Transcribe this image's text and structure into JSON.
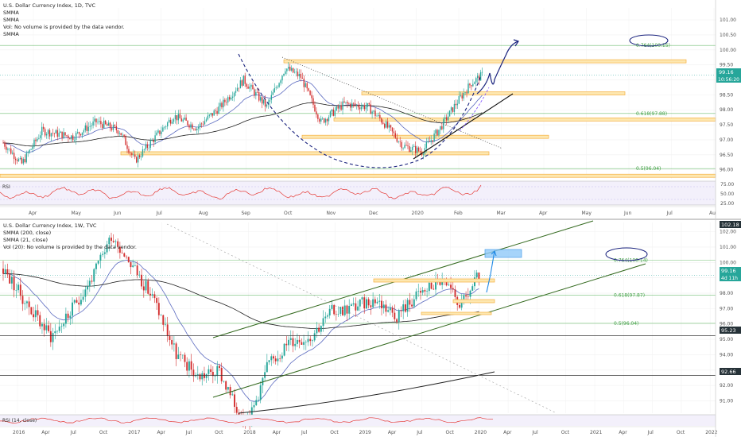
{
  "colors": {
    "up": "#26a69a",
    "down": "#d32f2f",
    "smma_blue": "#5c6bc0",
    "smma_black": "#1f1f1f",
    "fib": "#4caf50",
    "zone": "#f5b041",
    "rsi": "#e53935",
    "projection": "#1a237e",
    "price_badge": "#26a69a",
    "level_badge": "#263238"
  },
  "top": {
    "legend": [
      "U.S. Dollar Currency Index, 1D, TVC",
      "SMMA",
      "SMMA",
      "Vol: No volume is provided by the data vendor.",
      "SMMA"
    ],
    "price_badge": "99.16",
    "time_badge": "10:56:20",
    "fib_labels": [
      "0.764(100.15)",
      "0.618(97.88)",
      "0.5(96.04)"
    ],
    "rsi_label": "RSI",
    "rsi_ticks": [
      "75.00",
      "50.00",
      "25.00"
    ],
    "x_ticks": [
      "Apr",
      "May",
      "Jun",
      "Jul",
      "Aug",
      "Sep",
      "Oct",
      "Nov",
      "Dec",
      "2020",
      "Feb",
      "Mar",
      "Apr",
      "May",
      "Jun",
      "Jul",
      "Au"
    ]
  },
  "bottom": {
    "legend": [
      "U.S. Dollar Currency Index, 1W, TVC",
      "SMMA (200, close)",
      "SMMA (21, close)",
      "Vol (20): No volume is provided by the data vendor."
    ],
    "price_badge": "99.16",
    "time_badge": "4d 11h",
    "top_badge": "102.18",
    "level_badges": [
      "95.23",
      "92.66"
    ],
    "fib_labels": [
      "0.764(100.14)",
      "0.618(97.87)",
      "0.5(96.04)"
    ],
    "rsi_label": "RSI (14, close)",
    "x_ticks": [
      "2016",
      "Apr",
      "Jul",
      "Oct",
      "2017",
      "Apr",
      "Jul",
      "Oct",
      "2018",
      "Apr",
      "Jul",
      "Oct",
      "2019",
      "Apr",
      "Jul",
      "Oct",
      "2020",
      "Apr",
      "Jul",
      "Oct",
      "2021",
      "Apr",
      "Jul",
      "Oct",
      "2022"
    ]
  },
  "chart_data": [
    {
      "type": "candlestick",
      "title": "U.S. Dollar Currency Index, 1D, TVC",
      "ylim": [
        95.7,
        101.4
      ],
      "yticks": [
        96.0,
        96.5,
        97.0,
        97.5,
        98.0,
        98.5,
        99.0,
        99.5,
        100.0,
        100.5,
        101.0
      ],
      "x_labels": [
        "Apr",
        "May",
        "Jun",
        "Jul",
        "Aug",
        "Sep",
        "Oct",
        "Nov",
        "Dec",
        "2020",
        "Feb",
        "Mar",
        "Apr",
        "May",
        "Jun",
        "Jul",
        "Au"
      ],
      "price_path": [
        [
          0,
          96.9
        ],
        [
          12,
          96.2
        ],
        [
          25,
          97.3
        ],
        [
          45,
          97.1
        ],
        [
          60,
          97.6
        ],
        [
          75,
          97.3
        ],
        [
          85,
          96.3
        ],
        [
          95,
          96.9
        ],
        [
          110,
          97.8
        ],
        [
          125,
          97.4
        ],
        [
          140,
          98.1
        ],
        [
          155,
          99.0
        ],
        [
          170,
          98.1
        ],
        [
          182,
          99.4
        ],
        [
          192,
          99.1
        ],
        [
          205,
          97.6
        ],
        [
          220,
          98.2
        ],
        [
          235,
          98.1
        ],
        [
          245,
          97.6
        ],
        [
          258,
          96.8
        ],
        [
          270,
          96.6
        ],
        [
          282,
          97.4
        ],
        [
          292,
          98.2
        ],
        [
          302,
          98.9
        ],
        [
          309,
          99.16
        ]
      ],
      "fib_levels": [
        {
          "label": "0.764(100.15)",
          "value": 100.15
        },
        {
          "label": "0.618(97.88)",
          "value": 97.88
        },
        {
          "label": "0.5(96.04)",
          "value": 96.04
        }
      ],
      "zones": [
        99.62,
        98.55,
        97.68,
        97.1,
        96.55,
        95.8
      ],
      "last_price": 99.16
    },
    {
      "type": "candlestick",
      "title": "U.S. Dollar Currency Index, 1W, TVC",
      "ylim": [
        90.2,
        102.6
      ],
      "yticks": [
        91.0,
        92.0,
        93.0,
        94.0,
        95.0,
        96.0,
        97.0,
        98.0,
        99.0,
        100.0,
        101.0,
        102.0
      ],
      "x_labels": [
        "2016",
        "Apr",
        "Jul",
        "Oct",
        "2017",
        "Apr",
        "Jul",
        "Oct",
        "2018",
        "Apr",
        "Jul",
        "Oct",
        "2019",
        "Apr",
        "Jul",
        "Oct",
        "2020",
        "Apr",
        "Jul",
        "Oct",
        "2021",
        "Apr",
        "Jul",
        "Oct",
        "2022"
      ],
      "price_path": [
        [
          0,
          99.6
        ],
        [
          10,
          97.5
        ],
        [
          22,
          95.2
        ],
        [
          30,
          96.5
        ],
        [
          42,
          99.2
        ],
        [
          50,
          101.8
        ],
        [
          58,
          100.2
        ],
        [
          70,
          97.5
        ],
        [
          80,
          94.0
        ],
        [
          90,
          92.6
        ],
        [
          100,
          92.9
        ],
        [
          108,
          90.4
        ],
        [
          114,
          89.8
        ],
        [
          122,
          93.2
        ],
        [
          132,
          94.8
        ],
        [
          142,
          95.2
        ],
        [
          152,
          96.8
        ],
        [
          162,
          97.1
        ],
        [
          172,
          97.6
        ],
        [
          182,
          96.6
        ],
        [
          192,
          97.9
        ],
        [
          202,
          98.8
        ],
        [
          212,
          97.2
        ],
        [
          220,
          99.16
        ]
      ],
      "fib_levels": [
        {
          "label": "0.764(100.14)",
          "value": 100.14
        },
        {
          "label": "0.618(97.87)",
          "value": 97.87
        },
        {
          "label": "0.5(96.04)",
          "value": 96.04
        }
      ],
      "levels": [
        95.23,
        92.66
      ],
      "last_price": 99.16
    }
  ]
}
